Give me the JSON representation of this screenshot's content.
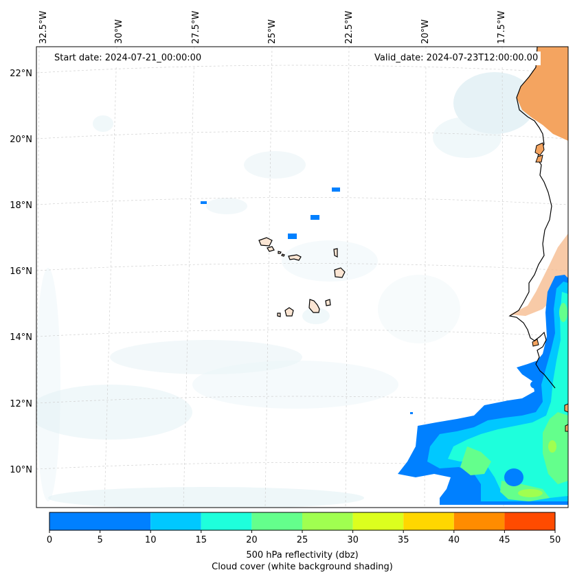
{
  "map": {
    "start_label": "Start date:",
    "start_value": "2024-07-21_00:00:00",
    "valid_label": "Valid_date:",
    "valid_value": "2024-07-23T12:00:00.00",
    "lon_labels": [
      "32.5°W",
      "30°W",
      "27.5°W",
      "25°W",
      "22.5°W",
      "20°W",
      "17.5°W"
    ],
    "lat_labels": [
      "22°N",
      "20°N",
      "18°N",
      "16°N",
      "14°N",
      "12°N",
      "10°N"
    ],
    "land_color": "#f4a460",
    "coast_color": "#000000"
  },
  "colorbar": {
    "ticks": [
      "0",
      "5",
      "10",
      "15",
      "20",
      "25",
      "30",
      "35",
      "40",
      "45",
      "50"
    ],
    "colors": [
      "#0080ff",
      "#00c8ff",
      "#1effdc",
      "#64ff8c",
      "#a0ff50",
      "#dcff1e",
      "#ffd700",
      "#ff8c00",
      "#ff4b00"
    ],
    "bins": [
      [
        0,
        10
      ],
      [
        10,
        15
      ],
      [
        15,
        20
      ],
      [
        20,
        25
      ],
      [
        25,
        30
      ],
      [
        30,
        35
      ],
      [
        35,
        40
      ],
      [
        40,
        45
      ],
      [
        45,
        50
      ]
    ],
    "label_line1": "500 hPa reflectivity (dbz)",
    "label_line2": "Cloud cover (white background shading)"
  }
}
